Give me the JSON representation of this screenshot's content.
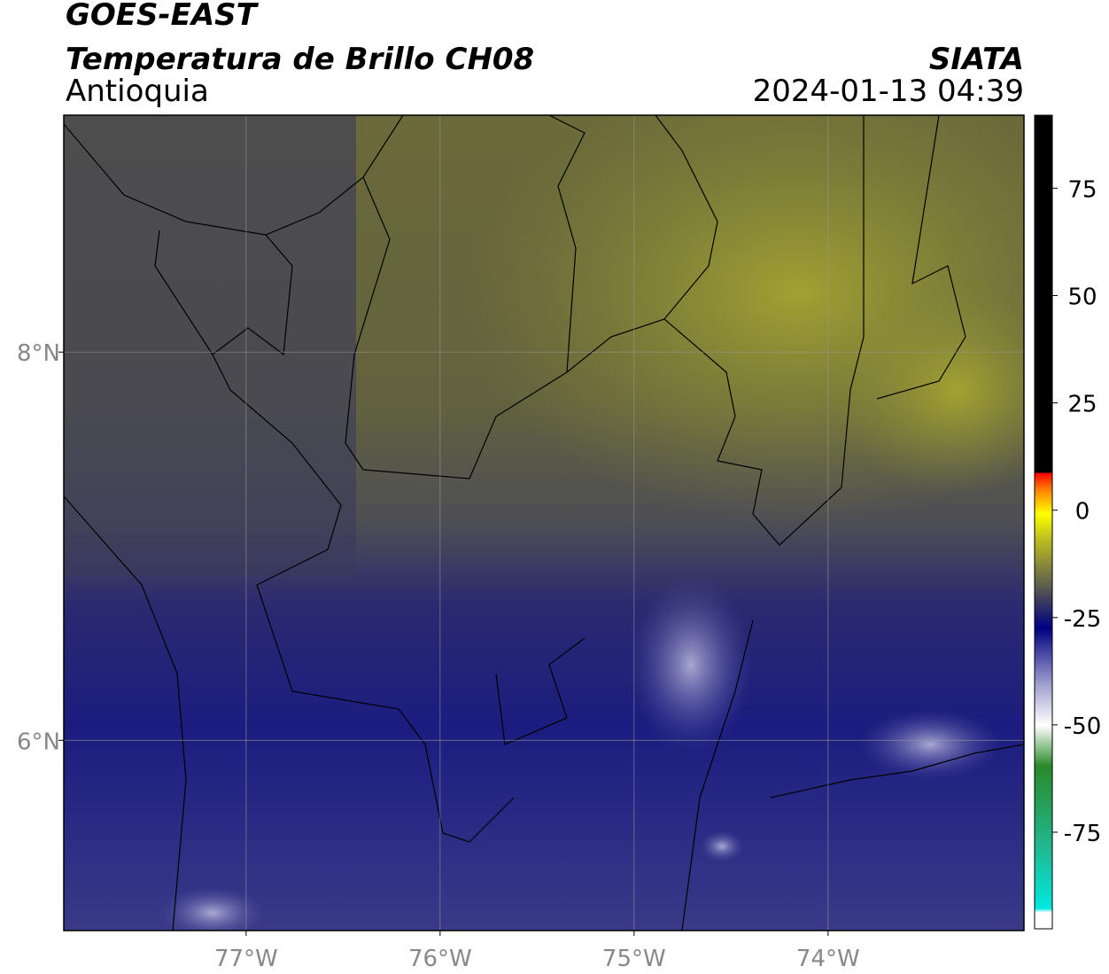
{
  "header": {
    "title": "GOES-EAST",
    "subtitle": "Temperatura de Brillo CH08",
    "region": "Antioquia",
    "source": "SIATA",
    "timestamp": "2024-01-13 04:39"
  },
  "map": {
    "xlim": [
      -77.94,
      -72.99
    ],
    "ylim": [
      5.02,
      9.22
    ],
    "xticks": [
      {
        "value": -77,
        "label": "77°W"
      },
      {
        "value": -76,
        "label": "76°W"
      },
      {
        "value": -75,
        "label": "75°W"
      },
      {
        "value": -74,
        "label": "74°W"
      }
    ],
    "yticks": [
      {
        "value": 6,
        "label": "6°N"
      },
      {
        "value": 8,
        "label": "8°N"
      }
    ]
  },
  "colorbar": {
    "lim": [
      -97.5,
      92
    ],
    "ticks": [
      75,
      50,
      25,
      0,
      -25,
      -50,
      -75
    ]
  }
}
